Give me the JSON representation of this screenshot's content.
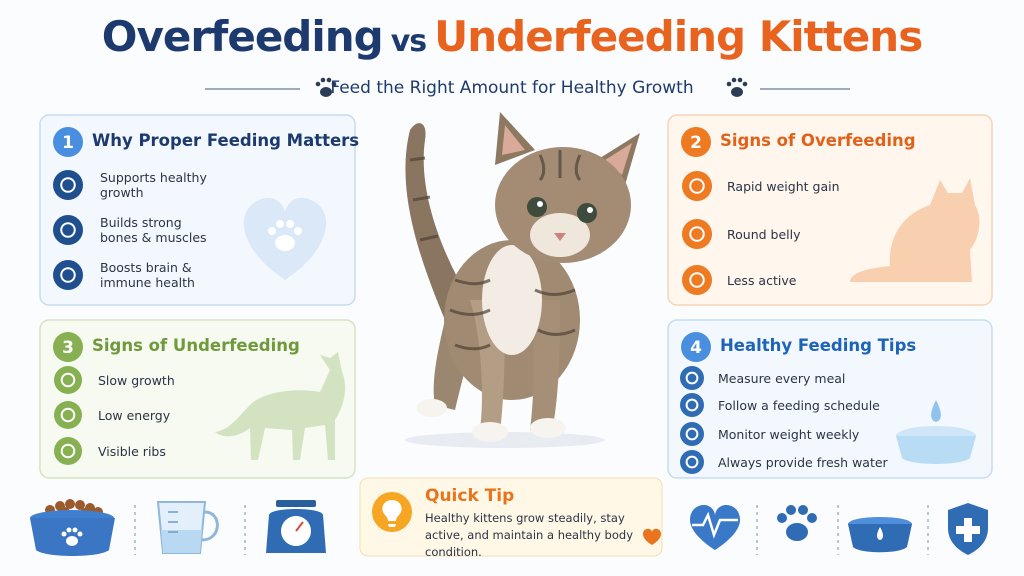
{
  "header": {
    "title_part1": "Overfeeding",
    "title_vs": "vs",
    "title_part2": "Underfeeding Kittens",
    "subtitle": "Feed the Right Amount for Healthy Growth"
  },
  "panels": [
    {
      "number": "1",
      "title": "Why Proper Feeding Matters",
      "items": [
        "Supports healthy growth",
        "Builds strong bones & muscles",
        "Boosts brain & immune health"
      ]
    },
    {
      "number": "2",
      "title": "Signs of Overfeeding",
      "items": [
        "Rapid weight gain",
        "Round belly",
        "Less active"
      ]
    },
    {
      "number": "3",
      "title": "Signs of Underfeeding",
      "items": [
        "Slow growth",
        "Low energy",
        "Visible ribs"
      ]
    },
    {
      "number": "4",
      "title": "Healthy Feeding Tips",
      "items": [
        "Measure every meal",
        "Follow a feeding schedule",
        "Monitor weight weekly",
        "Always provide fresh water"
      ]
    }
  ],
  "quick_tip": {
    "title": "Quick Tip",
    "text": "Healthy kittens grow steadily, stay active, and maintain a healthy body condition."
  }
}
